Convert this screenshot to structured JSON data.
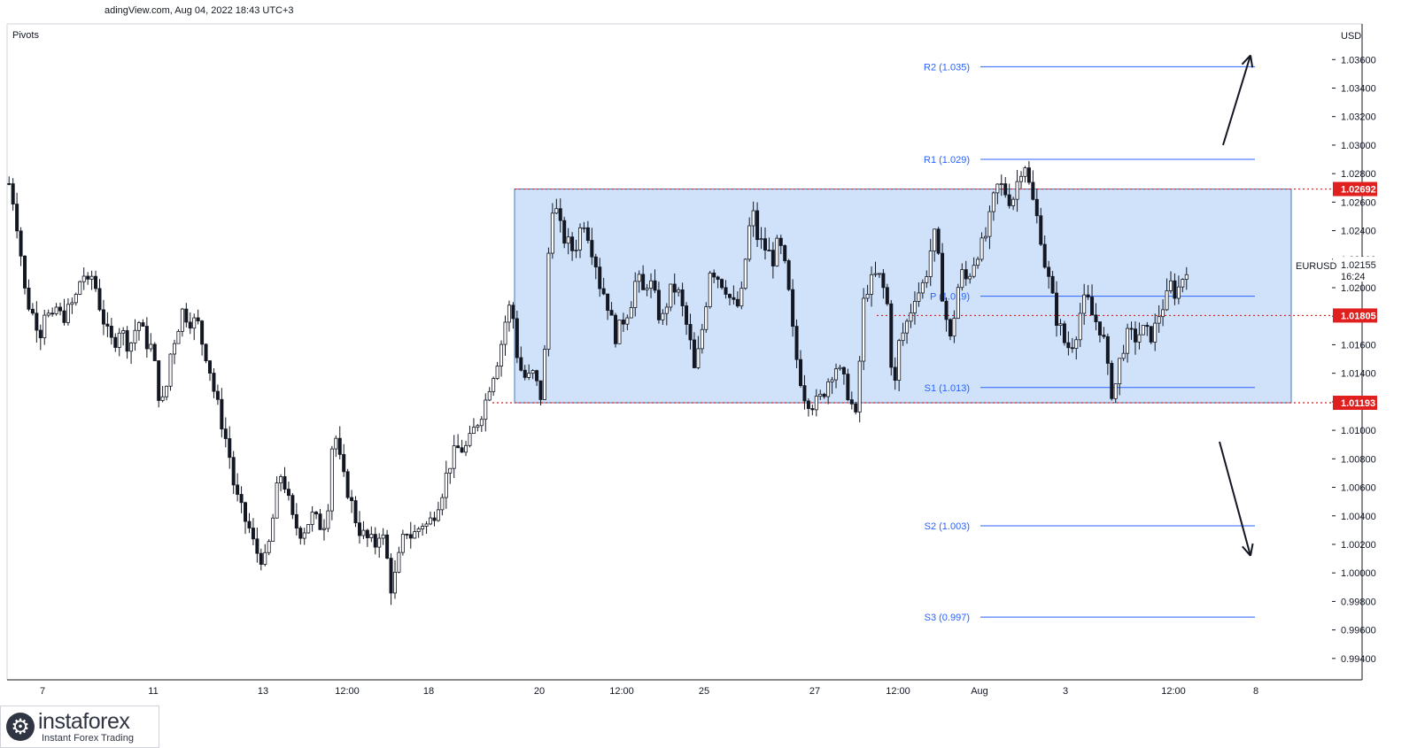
{
  "header": {
    "source_line": "adingView.com, Aug 04, 2022 18:43 UTC+3",
    "indicator": "Pivots"
  },
  "brand": {
    "name": "instaforex",
    "tagline": "Instant Forex Trading"
  },
  "colors": {
    "candle": "#131722",
    "range_fill": "#cfe2fa",
    "range_border": "#4a78b5",
    "pivot_line": "#2962ff",
    "pivot_text": "#2962ff",
    "level_red": "#e01f1f",
    "axis_text": "#131722",
    "axis_line": "#d1d4dc"
  },
  "chart_data": {
    "type": "candlestick",
    "symbol": "EURUSD",
    "currency": "USD",
    "last_price": "1.02155",
    "countdown": "16:24",
    "ylim": [
      0.9925,
      1.0385
    ],
    "y_ticks": [
      "1.03600",
      "1.03400",
      "1.03200",
      "1.03000",
      "1.02800",
      "1.02600",
      "1.02400",
      "1.02200",
      "1.02000",
      "1.01800",
      "1.01600",
      "1.01400",
      "1.01200",
      "1.01000",
      "1.00800",
      "1.00600",
      "1.00400",
      "1.00200",
      "1.00000",
      "0.99800",
      "0.99600",
      "0.99400"
    ],
    "x_ticks": [
      "7",
      "11",
      "13",
      "12:00",
      "18",
      "20",
      "12:00",
      "25",
      "27",
      "12:00",
      "Aug",
      "3",
      "12:00",
      "8"
    ],
    "price_path": [
      1.0273,
      1.0258,
      1.0232,
      1.0198,
      1.0185,
      1.0178,
      1.0169,
      1.0189,
      1.0172,
      1.0186,
      1.0179,
      1.0182,
      1.0188,
      1.0195,
      1.0213,
      1.02,
      1.021,
      1.0192,
      1.0178,
      1.0165,
      1.016,
      1.0172,
      1.0166,
      1.0158,
      1.017,
      1.0177,
      1.0162,
      1.016,
      1.0142,
      1.0115,
      1.0128,
      1.0158,
      1.0168,
      1.0184,
      1.018,
      1.0176,
      1.0176,
      1.016,
      1.015,
      1.013,
      1.0115,
      1.01,
      1.0085,
      1.006,
      1.0047,
      1.0038,
      1.003,
      1.0016,
      1.0012,
      1.0008,
      1.0026,
      1.0055,
      1.007,
      1.0058,
      1.0038,
      1.0032,
      1.0028,
      1.0035,
      1.004,
      1.0035,
      1.0032,
      1.005,
      1.0105,
      1.0082,
      1.0065,
      1.0055,
      1.004,
      1.003,
      1.0025,
      1.0022,
      1.002,
      1.0032,
      1.0015,
      0.999,
      1.0,
      1.002,
      1.003,
      1.0025,
      1.003,
      1.0035,
      1.0033,
      1.004,
      1.005,
      1.006,
      1.0075,
      1.0083,
      1.0088,
      1.0086,
      1.0092,
      1.0102,
      1.011,
      1.012,
      1.0135,
      1.0145,
      1.016,
      1.018,
      1.019,
      1.0155,
      1.014,
      1.0135,
      1.014,
      1.013,
      1.012,
      1.022,
      1.0265,
      1.0245,
      1.0235,
      1.023,
      1.0225,
      1.024,
      1.0248,
      1.0232,
      1.022,
      1.02,
      1.0195,
      1.0178,
      1.0165,
      1.0175,
      1.0182,
      1.0192,
      1.021,
      1.0195,
      1.0205,
      1.02,
      1.0182,
      1.0178,
      1.0195,
      1.02,
      1.0195,
      1.018,
      1.0165,
      1.014,
      1.016,
      1.0185,
      1.0215,
      1.021,
      1.0205,
      1.02,
      1.019,
      1.0185,
      1.0195,
      1.023,
      1.0255,
      1.0235,
      1.023,
      1.0225,
      1.022,
      1.0232,
      1.022,
      1.0195,
      1.016,
      1.014,
      1.0125,
      1.012,
      1.0118,
      1.0122,
      1.013,
      1.014,
      1.0145,
      1.0138,
      1.013,
      1.0118,
      1.0105,
      1.0185,
      1.02,
      1.0205,
      1.021,
      1.02,
      1.0185,
      1.012,
      1.016,
      1.017,
      1.018,
      1.0195,
      1.0198,
      1.0205,
      1.0225,
      1.0238,
      1.0205,
      1.018,
      1.016,
      1.0195,
      1.021,
      1.0205,
      1.0215,
      1.0225,
      1.023,
      1.024,
      1.026,
      1.0272,
      1.027,
      1.0262,
      1.0264,
      1.028,
      1.029,
      1.027,
      1.0255,
      1.024,
      1.0215,
      1.02,
      1.018,
      1.017,
      1.0158,
      1.016,
      1.017,
      1.0188,
      1.0192,
      1.018,
      1.0175,
      1.0168,
      1.014,
      1.0122,
      1.0145,
      1.016,
      1.0168,
      1.0164,
      1.0168,
      1.017,
      1.0165,
      1.0172,
      1.0185,
      1.019,
      1.0202,
      1.0195,
      1.0205,
      1.0215
    ],
    "range_box": {
      "top": 1.02692,
      "bottom": 1.01193
    },
    "pivots": [
      {
        "label": "R2 (1.035)",
        "value": 1.0355
      },
      {
        "label": "R1 (1.029)",
        "value": 1.029
      },
      {
        "label": "P (1.019)",
        "value": 1.0194
      },
      {
        "label": "S1 (1.013)",
        "value": 1.013
      },
      {
        "label": "S2 (1.003)",
        "value": 1.0033
      },
      {
        "label": "S3 (0.997)",
        "value": 0.9969
      }
    ],
    "key_levels": [
      {
        "label": "1.02692",
        "value": 1.02692
      },
      {
        "label": "1.01805",
        "value": 1.01805
      },
      {
        "label": "1.01193",
        "value": 1.01193
      }
    ],
    "annotations": [
      {
        "type": "arrow",
        "direction": "up",
        "from": 1.03,
        "to": 1.0363
      },
      {
        "type": "arrow",
        "direction": "down",
        "from": 1.0092,
        "to": 1.0012
      }
    ]
  }
}
